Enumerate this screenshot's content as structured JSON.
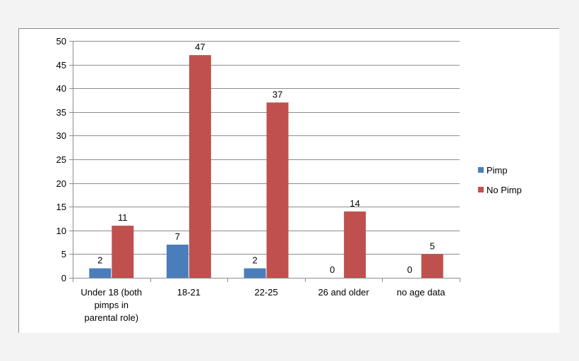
{
  "chart_data": {
    "type": "bar",
    "categories": [
      [
        "Under 18 (both",
        "pimps in",
        "parental role)"
      ],
      [
        "18-21"
      ],
      [
        "22-25"
      ],
      [
        "26 and older"
      ],
      [
        "no age data"
      ]
    ],
    "series": [
      {
        "name": "Pimp",
        "color": "#4a7ebb",
        "values": [
          2,
          7,
          2,
          0,
          0
        ],
        "labels": [
          "2",
          "7",
          "2",
          "0",
          "0"
        ]
      },
      {
        "name": "No Pimp",
        "color": "#c0504d",
        "values": [
          11,
          47,
          37,
          14,
          5
        ],
        "labels": [
          "11",
          "47",
          "37",
          "14",
          "5"
        ]
      }
    ],
    "yticks": [
      "0",
      "5",
      "10",
      "15",
      "20",
      "25",
      "30",
      "35",
      "40",
      "45",
      "50"
    ],
    "ylim": [
      0,
      50
    ],
    "grid": true,
    "legend": "right"
  }
}
